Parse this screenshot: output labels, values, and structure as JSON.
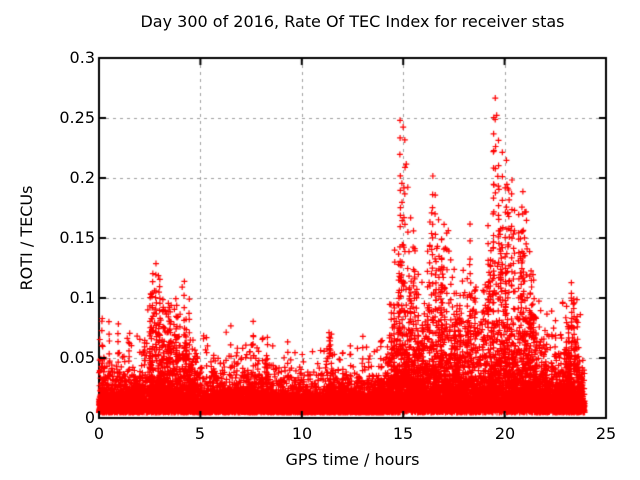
{
  "chart_data": {
    "type": "scatter",
    "title": "Day 300 of 2016, Rate Of TEC Index for receiver stas",
    "xlabel": "GPS time / hours",
    "ylabel": "ROTI / TECUs",
    "xlim": [
      0,
      25
    ],
    "ylim": [
      0,
      0.3
    ],
    "xticks": [
      0,
      5,
      10,
      15,
      20,
      25
    ],
    "yticks": [
      0,
      0.05,
      0.1,
      0.15,
      0.2,
      0.25,
      0.3
    ],
    "xtick_labels": [
      "0",
      "5",
      "10",
      "15",
      "20",
      "25"
    ],
    "ytick_labels": [
      "0",
      "0.05",
      "0.1",
      "0.15",
      "0.2",
      "0.25",
      "0.3"
    ],
    "grid": true,
    "legend": null,
    "marker": "plus",
    "marker_color": "#ff0000",
    "grid_color": "#a0a0a0",
    "axis_color": "#000000",
    "background_color": "#ffffff",
    "data_time_range": [
      0,
      23.95
    ],
    "sample_step_hours": 0.008,
    "baseline": {
      "floor": 0.0045,
      "lambda": 0.011,
      "ref_envelope": 0.085
    },
    "envelope": {
      "step_hours": 0.5,
      "upper": [
        0.085,
        0.08,
        0.075,
        0.072,
        0.08,
        0.11,
        0.126,
        0.1,
        0.115,
        0.088,
        0.075,
        0.065,
        0.07,
        0.076,
        0.07,
        0.08,
        0.072,
        0.068,
        0.065,
        0.062,
        0.058,
        0.056,
        0.06,
        0.072,
        0.06,
        0.062,
        0.065,
        0.058,
        0.072,
        0.13,
        0.248,
        0.16,
        0.14,
        0.2,
        0.17,
        0.14,
        0.13,
        0.15,
        0.12,
        0.265,
        0.22,
        0.2,
        0.19,
        0.13,
        0.1,
        0.09,
        0.1,
        0.115,
        0.06
      ]
    },
    "peaks": [
      [
        0.15,
        0.04,
        0.082,
        5
      ],
      [
        0.5,
        0.04,
        0.078,
        4
      ],
      [
        0.95,
        0.045,
        0.08,
        5
      ],
      [
        1.5,
        0.04,
        0.072,
        4
      ],
      [
        2.65,
        0.05,
        0.118,
        7
      ],
      [
        2.8,
        0.06,
        0.127,
        8
      ],
      [
        3.0,
        0.055,
        0.11,
        5
      ],
      [
        3.15,
        0.05,
        0.1,
        5
      ],
      [
        3.8,
        0.05,
        0.099,
        5
      ],
      [
        4.2,
        0.05,
        0.114,
        7
      ],
      [
        4.45,
        0.045,
        0.1,
        5
      ],
      [
        5.3,
        0.035,
        0.065,
        4
      ],
      [
        6.5,
        0.04,
        0.075,
        4
      ],
      [
        7.6,
        0.04,
        0.079,
        5
      ],
      [
        8.3,
        0.04,
        0.068,
        4
      ],
      [
        9.3,
        0.035,
        0.063,
        4
      ],
      [
        11.35,
        0.052,
        0.071,
        7
      ],
      [
        11.4,
        0.058,
        0.068,
        4
      ],
      [
        12.4,
        0.035,
        0.061,
        4
      ],
      [
        13.0,
        0.04,
        0.07,
        4
      ],
      [
        13.9,
        0.04,
        0.066,
        4
      ],
      [
        14.55,
        0.05,
        0.096,
        6
      ],
      [
        14.85,
        0.1,
        0.248,
        11
      ],
      [
        14.95,
        0.075,
        0.198,
        8
      ],
      [
        15.08,
        0.09,
        0.232,
        7
      ],
      [
        15.3,
        0.06,
        0.14,
        5
      ],
      [
        15.5,
        0.06,
        0.158,
        7
      ],
      [
        15.75,
        0.05,
        0.12,
        5
      ],
      [
        16.2,
        0.06,
        0.138,
        6
      ],
      [
        16.45,
        0.11,
        0.2,
        8
      ],
      [
        16.58,
        0.1,
        0.186,
        6
      ],
      [
        16.9,
        0.07,
        0.15,
        5
      ],
      [
        17.15,
        0.07,
        0.156,
        6
      ],
      [
        17.5,
        0.05,
        0.122,
        5
      ],
      [
        17.8,
        0.05,
        0.1,
        4
      ],
      [
        18.3,
        0.075,
        0.162,
        7
      ],
      [
        18.6,
        0.05,
        0.11,
        4
      ],
      [
        19.0,
        0.05,
        0.105,
        4
      ],
      [
        19.2,
        0.055,
        0.128,
        5
      ],
      [
        19.45,
        0.14,
        0.252,
        9
      ],
      [
        19.55,
        0.19,
        0.266,
        5
      ],
      [
        19.7,
        0.11,
        0.232,
        7
      ],
      [
        19.9,
        0.1,
        0.222,
        7
      ],
      [
        20.1,
        0.12,
        0.214,
        6
      ],
      [
        20.35,
        0.11,
        0.198,
        8
      ],
      [
        20.5,
        0.09,
        0.173,
        6
      ],
      [
        20.68,
        0.07,
        0.15,
        5
      ],
      [
        20.9,
        0.08,
        0.19,
        7
      ],
      [
        21.1,
        0.06,
        0.142,
        5
      ],
      [
        21.4,
        0.05,
        0.12,
        4
      ],
      [
        21.7,
        0.045,
        0.095,
        4
      ],
      [
        22.1,
        0.04,
        0.085,
        4
      ],
      [
        22.5,
        0.04,
        0.08,
        4
      ],
      [
        23.3,
        0.065,
        0.114,
        7
      ],
      [
        23.42,
        0.055,
        0.1,
        6
      ],
      [
        23.6,
        0.04,
        0.08,
        4
      ]
    ]
  }
}
